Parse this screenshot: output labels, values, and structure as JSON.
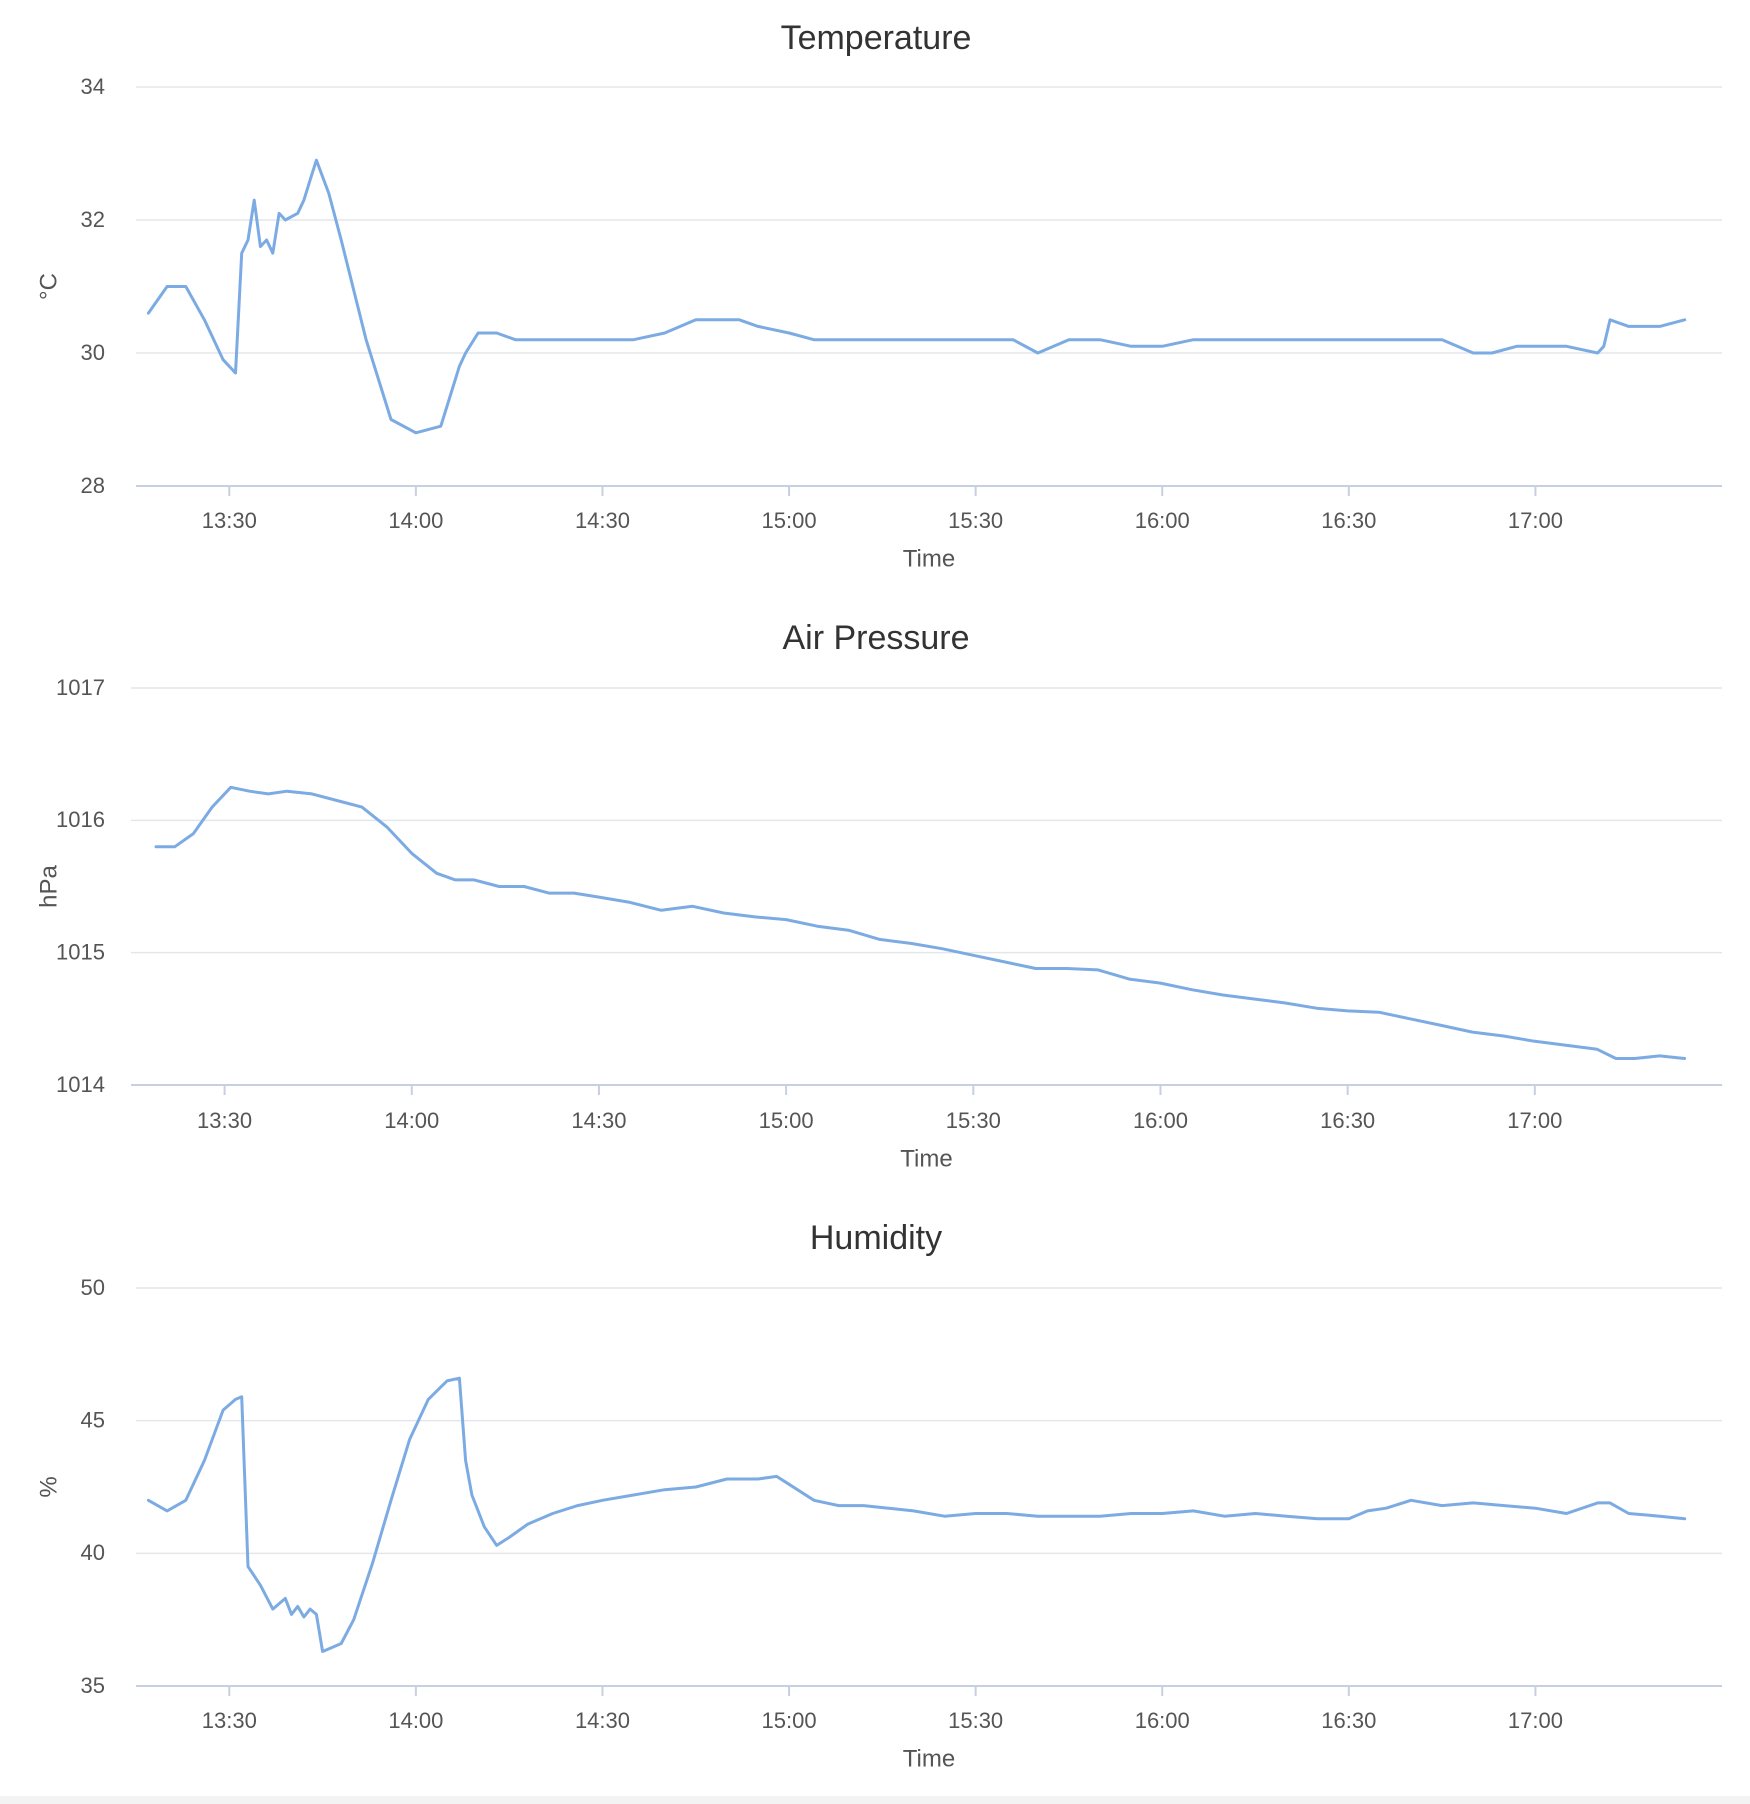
{
  "chart_data": [
    {
      "type": "line",
      "title": "Temperature",
      "xlabel": "Time",
      "ylabel": "°C",
      "ylim": [
        28,
        34
      ],
      "yticks": [
        "28",
        "30",
        "32",
        "34"
      ],
      "xlim": [
        "13:15",
        "17:30"
      ],
      "xticks": [
        "13:30",
        "14:00",
        "14:30",
        "15:00",
        "15:30",
        "16:00",
        "16:30",
        "17:00"
      ],
      "grid": true,
      "color": "#7cabe3",
      "series": [
        {
          "x": [
            "13:17",
            "13:20",
            "13:23",
            "13:26",
            "13:29",
            "13:31",
            "13:32",
            "13:33",
            "13:34",
            "13:35",
            "13:36",
            "13:37",
            "13:38",
            "13:39",
            "13:41",
            "13:42",
            "13:43",
            "13:44",
            "13:46",
            "13:48",
            "13:52",
            "13:56",
            "14:00",
            "14:04",
            "14:07",
            "14:08",
            "14:10",
            "14:13",
            "14:16",
            "14:20",
            "14:25",
            "14:30",
            "14:35",
            "14:40",
            "14:45",
            "14:48",
            "14:52",
            "14:55",
            "15:00",
            "15:04",
            "15:08",
            "15:12",
            "15:18",
            "15:24",
            "15:30",
            "15:36",
            "15:40",
            "15:45",
            "15:50",
            "15:55",
            "16:00",
            "16:05",
            "16:10",
            "16:15",
            "16:20",
            "16:25",
            "16:30",
            "16:35",
            "16:40",
            "16:45",
            "16:50",
            "16:53",
            "16:57",
            "17:00",
            "17:05",
            "17:10",
            "17:11",
            "17:12",
            "17:15",
            "17:20",
            "17:24"
          ],
          "values": [
            30.6,
            31.0,
            31.0,
            30.5,
            29.9,
            29.7,
            31.5,
            31.7,
            32.3,
            31.6,
            31.7,
            31.5,
            32.1,
            32.0,
            32.1,
            32.3,
            32.6,
            32.9,
            32.4,
            31.7,
            30.2,
            29.0,
            28.8,
            28.9,
            29.8,
            30.0,
            30.3,
            30.3,
            30.2,
            30.2,
            30.2,
            30.2,
            30.2,
            30.3,
            30.5,
            30.5,
            30.5,
            30.4,
            30.3,
            30.2,
            30.2,
            30.2,
            30.2,
            30.2,
            30.2,
            30.2,
            30.0,
            30.2,
            30.2,
            30.1,
            30.1,
            30.2,
            30.2,
            30.2,
            30.2,
            30.2,
            30.2,
            30.2,
            30.2,
            30.2,
            30.0,
            30.0,
            30.1,
            30.1,
            30.1,
            30.0,
            30.1,
            30.5,
            30.4,
            30.4,
            30.5
          ]
        }
      ]
    },
    {
      "type": "line",
      "title": "Air Pressure",
      "xlabel": "Time",
      "ylabel": "hPa",
      "ylim": [
        1014,
        1017
      ],
      "yticks": [
        "1014",
        "1015",
        "1016",
        "1017"
      ],
      "xlim": [
        "13:15",
        "17:30"
      ],
      "xticks": [
        "13:30",
        "14:00",
        "14:30",
        "15:00",
        "15:30",
        "16:00",
        "16:30",
        "17:00"
      ],
      "grid": true,
      "color": "#7cabe3",
      "series": [
        {
          "x": [
            "13:19",
            "13:22",
            "13:25",
            "13:28",
            "13:31",
            "13:34",
            "13:37",
            "13:40",
            "13:44",
            "13:48",
            "13:52",
            "13:56",
            "14:00",
            "14:04",
            "14:07",
            "14:10",
            "14:14",
            "14:18",
            "14:22",
            "14:26",
            "14:30",
            "14:35",
            "14:40",
            "14:45",
            "14:50",
            "14:55",
            "15:00",
            "15:05",
            "15:10",
            "15:15",
            "15:20",
            "15:25",
            "15:30",
            "15:35",
            "15:40",
            "15:45",
            "15:50",
            "15:55",
            "16:00",
            "16:05",
            "16:10",
            "16:15",
            "16:20",
            "16:25",
            "16:30",
            "16:35",
            "16:40",
            "16:45",
            "16:50",
            "16:55",
            "17:00",
            "17:05",
            "17:10",
            "17:13",
            "17:16",
            "17:20",
            "17:24"
          ],
          "values": [
            1015.8,
            1015.8,
            1015.9,
            1016.1,
            1016.25,
            1016.22,
            1016.2,
            1016.22,
            1016.2,
            1016.15,
            1016.1,
            1015.95,
            1015.75,
            1015.6,
            1015.55,
            1015.55,
            1015.5,
            1015.5,
            1015.45,
            1015.45,
            1015.42,
            1015.38,
            1015.32,
            1015.35,
            1015.3,
            1015.27,
            1015.25,
            1015.2,
            1015.17,
            1015.1,
            1015.07,
            1015.03,
            1014.98,
            1014.93,
            1014.88,
            1014.88,
            1014.87,
            1014.8,
            1014.77,
            1014.72,
            1014.68,
            1014.65,
            1014.62,
            1014.58,
            1014.56,
            1014.55,
            1014.5,
            1014.45,
            1014.4,
            1014.37,
            1014.33,
            1014.3,
            1014.27,
            1014.2,
            1014.2,
            1014.22,
            1014.2
          ]
        }
      ]
    },
    {
      "type": "line",
      "title": "Humidity",
      "xlabel": "Time",
      "ylabel": "%",
      "ylim": [
        35,
        50
      ],
      "yticks": [
        "35",
        "40",
        "45",
        "50"
      ],
      "xlim": [
        "13:15",
        "17:30"
      ],
      "xticks": [
        "13:30",
        "14:00",
        "14:30",
        "15:00",
        "15:30",
        "16:00",
        "16:30",
        "17:00"
      ],
      "grid": true,
      "color": "#7cabe3",
      "series": [
        {
          "x": [
            "13:17",
            "13:20",
            "13:23",
            "13:26",
            "13:29",
            "13:31",
            "13:32",
            "13:33",
            "13:35",
            "13:37",
            "13:39",
            "13:40",
            "13:41",
            "13:42",
            "13:43",
            "13:44",
            "13:45",
            "13:46",
            "13:48",
            "13:50",
            "13:53",
            "13:56",
            "13:59",
            "14:02",
            "14:05",
            "14:07",
            "14:08",
            "14:09",
            "14:11",
            "14:13",
            "14:15",
            "14:18",
            "14:22",
            "14:26",
            "14:30",
            "14:35",
            "14:40",
            "14:45",
            "14:50",
            "14:55",
            "14:58",
            "15:00",
            "15:04",
            "15:08",
            "15:12",
            "15:16",
            "15:20",
            "15:25",
            "15:30",
            "15:35",
            "15:40",
            "15:45",
            "15:50",
            "15:55",
            "16:00",
            "16:05",
            "16:10",
            "16:15",
            "16:20",
            "16:25",
            "16:30",
            "16:33",
            "16:36",
            "16:40",
            "16:45",
            "16:50",
            "16:55",
            "17:00",
            "17:05",
            "17:10",
            "17:12",
            "17:15",
            "17:20",
            "17:24"
          ],
          "values": [
            42.0,
            41.6,
            42.0,
            43.5,
            45.4,
            45.8,
            45.9,
            39.5,
            38.8,
            37.9,
            38.3,
            37.7,
            38.0,
            37.6,
            37.9,
            37.7,
            36.3,
            36.4,
            36.6,
            37.5,
            39.6,
            42.0,
            44.3,
            45.8,
            46.5,
            46.6,
            43.5,
            42.2,
            41.0,
            40.3,
            40.6,
            41.1,
            41.5,
            41.8,
            42.0,
            42.2,
            42.4,
            42.5,
            42.8,
            42.8,
            42.9,
            42.6,
            42.0,
            41.8,
            41.8,
            41.7,
            41.6,
            41.4,
            41.5,
            41.5,
            41.4,
            41.4,
            41.4,
            41.5,
            41.5,
            41.6,
            41.4,
            41.5,
            41.4,
            41.3,
            41.3,
            41.6,
            41.7,
            42.0,
            41.8,
            41.9,
            41.8,
            41.7,
            41.5,
            41.9,
            41.9,
            41.5,
            41.4,
            41.3
          ]
        }
      ]
    }
  ]
}
